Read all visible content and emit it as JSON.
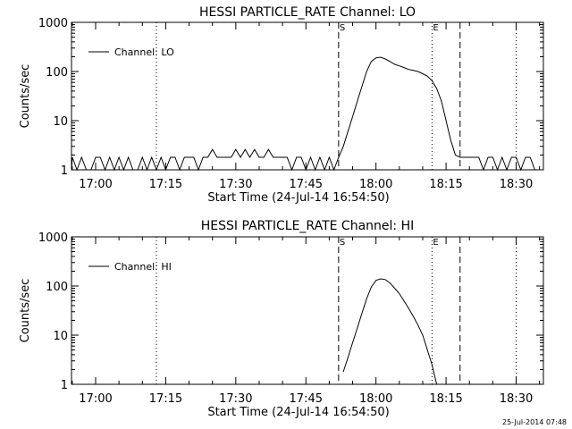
{
  "chart_data": [
    {
      "type": "line",
      "title": "HESSI PARTICLE_RATE Channel: LO",
      "xlabel": "Start Time (24-Jul-14 16:54:50)",
      "ylabel": "Counts/sec",
      "yscale": "log",
      "ylim": [
        1,
        1000
      ],
      "xlim": [
        "16:54:50",
        "18:35:50"
      ],
      "x_ticks": [
        "17:00",
        "17:15",
        "17:30",
        "17:45",
        "18:00",
        "18:15",
        "18:30"
      ],
      "y_ticks": [
        "1",
        "10",
        "100",
        "1000"
      ],
      "legend": {
        "label": "Channel: LO",
        "position": "top-left"
      },
      "markers": [
        {
          "time": "17:13",
          "style": "dotted",
          "label": ""
        },
        {
          "time": "17:52",
          "style": "dashed",
          "label": "S"
        },
        {
          "time": "18:12",
          "style": "dotted",
          "label": "E"
        },
        {
          "time": "18:18",
          "style": "dashed",
          "label": ""
        },
        {
          "time": "18:30",
          "style": "dotted",
          "label": ""
        }
      ],
      "series": [
        {
          "points": [
            [
              "16:54:50",
              1
            ],
            [
              "16:55",
              1.8
            ],
            [
              "16:56",
              1
            ],
            [
              "16:57",
              1.8
            ],
            [
              "16:58",
              1
            ],
            [
              "16:59",
              1
            ],
            [
              "17:00",
              1.8
            ],
            [
              "17:01",
              1.8
            ],
            [
              "17:02",
              1
            ],
            [
              "17:03",
              1.8
            ],
            [
              "17:04",
              1
            ],
            [
              "17:05",
              1.8
            ],
            [
              "17:06",
              1
            ],
            [
              "17:07",
              1.8
            ],
            [
              "17:08",
              1
            ],
            [
              "17:09",
              1
            ],
            [
              "17:10",
              1.8
            ],
            [
              "17:11",
              1
            ],
            [
              "17:12",
              1.8
            ],
            [
              "17:13",
              1
            ],
            [
              "17:14",
              1.8
            ],
            [
              "17:15",
              1
            ],
            [
              "17:16",
              1.8
            ],
            [
              "17:17",
              1.8
            ],
            [
              "17:18",
              1
            ],
            [
              "17:19",
              1.8
            ],
            [
              "17:20",
              1.8
            ],
            [
              "17:21",
              1.8
            ],
            [
              "17:22",
              1
            ],
            [
              "17:23",
              1.8
            ],
            [
              "17:24",
              1.8
            ],
            [
              "17:25",
              2.6
            ],
            [
              "17:26",
              1.8
            ],
            [
              "17:27",
              1.8
            ],
            [
              "17:28",
              1.8
            ],
            [
              "17:29",
              1.8
            ],
            [
              "17:30",
              2.6
            ],
            [
              "17:31",
              1.8
            ],
            [
              "17:32",
              2.6
            ],
            [
              "17:33",
              1.8
            ],
            [
              "17:34",
              2.6
            ],
            [
              "17:35",
              1.8
            ],
            [
              "17:36",
              1.8
            ],
            [
              "17:37",
              2.6
            ],
            [
              "17:38",
              1.8
            ],
            [
              "17:39",
              1.8
            ],
            [
              "17:40",
              1.8
            ],
            [
              "17:41",
              1.8
            ],
            [
              "17:42",
              1
            ],
            [
              "17:43",
              1.8
            ],
            [
              "17:44",
              1.8
            ],
            [
              "17:45",
              1
            ],
            [
              "17:46",
              1.8
            ],
            [
              "17:47",
              1
            ],
            [
              "17:48",
              1.8
            ],
            [
              "17:49",
              1
            ],
            [
              "17:50",
              1.8
            ],
            [
              "17:51",
              1
            ],
            [
              "17:52",
              1.8
            ],
            [
              "17:53",
              3
            ],
            [
              "17:54",
              6
            ],
            [
              "17:55",
              12
            ],
            [
              "17:56",
              25
            ],
            [
              "17:57",
              50
            ],
            [
              "17:58",
              100
            ],
            [
              "17:59",
              160
            ],
            [
              "18:00",
              190
            ],
            [
              "18:01",
              195
            ],
            [
              "18:02",
              180
            ],
            [
              "18:03",
              160
            ],
            [
              "18:04",
              140
            ],
            [
              "18:05",
              130
            ],
            [
              "18:06",
              120
            ],
            [
              "18:07",
              110
            ],
            [
              "18:08",
              105
            ],
            [
              "18:09",
              100
            ],
            [
              "18:10",
              90
            ],
            [
              "18:11",
              80
            ],
            [
              "18:12",
              65
            ],
            [
              "18:13",
              45
            ],
            [
              "18:14",
              25
            ],
            [
              "18:15",
              10
            ],
            [
              "18:16",
              4
            ],
            [
              "18:17",
              2
            ],
            [
              "18:18",
              1.8
            ],
            [
              "18:19",
              1.8
            ],
            [
              "18:20",
              1.8
            ],
            [
              "18:21",
              1.8
            ],
            [
              "18:22",
              1.8
            ],
            [
              "18:23",
              1
            ],
            [
              "18:24",
              1.8
            ],
            [
              "18:25",
              1.8
            ],
            [
              "18:26",
              1
            ],
            [
              "18:27",
              1.8
            ],
            [
              "18:28",
              1
            ],
            [
              "18:29",
              1.8
            ],
            [
              "18:30",
              1.8
            ],
            [
              "18:31",
              1
            ],
            [
              "18:32",
              1.8
            ],
            [
              "18:33",
              1.8
            ],
            [
              "18:34",
              1
            ],
            [
              "18:35:50",
              1
            ]
          ]
        }
      ]
    },
    {
      "type": "line",
      "title": "HESSI PARTICLE_RATE Channel: HI",
      "xlabel": "Start Time (24-Jul-14 16:54:50)",
      "ylabel": "Counts/sec",
      "yscale": "log",
      "ylim": [
        1,
        1000
      ],
      "xlim": [
        "16:54:50",
        "18:35:50"
      ],
      "x_ticks": [
        "17:00",
        "17:15",
        "17:30",
        "17:45",
        "18:00",
        "18:15",
        "18:30"
      ],
      "y_ticks": [
        "1",
        "10",
        "100",
        "1000"
      ],
      "legend": {
        "label": "Channel: HI",
        "position": "top-left"
      },
      "markers": [
        {
          "time": "17:13",
          "style": "dotted",
          "label": ""
        },
        {
          "time": "17:52",
          "style": "dashed",
          "label": "S"
        },
        {
          "time": "18:12",
          "style": "dotted",
          "label": "E"
        },
        {
          "time": "18:18",
          "style": "dashed",
          "label": ""
        },
        {
          "time": "18:30",
          "style": "dotted",
          "label": ""
        }
      ],
      "series": [
        {
          "points": [
            [
              "17:53",
              1.8
            ],
            [
              "17:54",
              3.5
            ],
            [
              "17:55",
              7
            ],
            [
              "17:56",
              14
            ],
            [
              "17:57",
              28
            ],
            [
              "17:58",
              55
            ],
            [
              "17:59",
              95
            ],
            [
              "18:00",
              130
            ],
            [
              "18:01",
              140
            ],
            [
              "18:02",
              135
            ],
            [
              "18:03",
              115
            ],
            [
              "18:04",
              90
            ],
            [
              "18:05",
              70
            ],
            [
              "18:06",
              50
            ],
            [
              "18:07",
              35
            ],
            [
              "18:08",
              24
            ],
            [
              "18:09",
              16
            ],
            [
              "18:10",
              10
            ],
            [
              "18:11",
              5
            ],
            [
              "18:12",
              2.5
            ],
            [
              "18:13",
              1
            ]
          ]
        }
      ]
    }
  ],
  "timestamp": "25-Jul-2014 07:48"
}
